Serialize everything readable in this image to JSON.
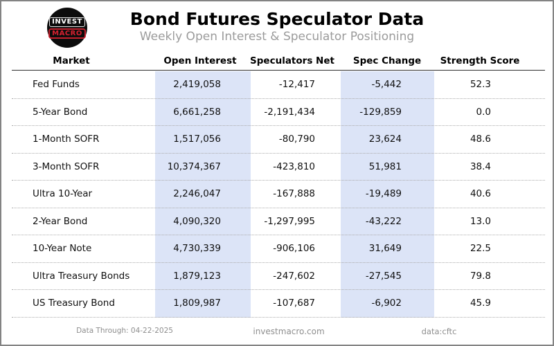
{
  "logo": {
    "top_text": "INVEST",
    "bottom_text": "MACRO"
  },
  "header": {
    "title": "Bond Futures Speculator Data",
    "subtitle": "Weekly Open Interest & Speculator Positioning"
  },
  "chart_data": {
    "type": "table",
    "title": "Bond Futures Speculator Data",
    "subtitle": "Weekly Open Interest & Speculator Positioning",
    "columns": [
      "Market",
      "Open Interest",
      "Speculators Net",
      "Spec Change",
      "Strength Score"
    ],
    "rows": [
      [
        "Fed Funds",
        "2,419,058",
        "-12,417",
        "-5,442",
        "52.3"
      ],
      [
        "5-Year Bond",
        "6,661,258",
        "-2,191,434",
        "-129,859",
        "0.0"
      ],
      [
        "1-Month SOFR",
        "1,517,056",
        "-80,790",
        "23,624",
        "48.6"
      ],
      [
        "3-Month SOFR",
        "10,374,367",
        "-423,810",
        "51,981",
        "38.4"
      ],
      [
        "Ultra 10-Year",
        "2,246,047",
        "-167,888",
        "-19,489",
        "40.6"
      ],
      [
        "2-Year Bond",
        "4,090,320",
        "-1,297,995",
        "-43,222",
        "13.0"
      ],
      [
        "10-Year Note",
        "4,730,339",
        "-906,106",
        "31,649",
        "22.5"
      ],
      [
        "Ultra Treasury Bonds",
        "1,879,123",
        "-247,602",
        "-27,545",
        "79.8"
      ],
      [
        "US Treasury Bond",
        "1,809,987",
        "-107,687",
        "-6,902",
        "45.9"
      ]
    ],
    "highlighted_columns": [
      "Open Interest",
      "Spec Change"
    ],
    "layout": {
      "grid": "dotted row separators",
      "numeric_alignment": "right"
    }
  },
  "colors": {
    "column_highlight": "#dce4f7",
    "logo_background": "#0c0c0c",
    "logo_red": "#d6202f",
    "subtitle_gray": "#9b9b9b",
    "footer_gray": "#8e8e8e",
    "frame_border": "#838383"
  },
  "footer": {
    "data_through": "Data Through: 04-22-2025",
    "website": "investmacro.com",
    "source": "data:cftc"
  }
}
